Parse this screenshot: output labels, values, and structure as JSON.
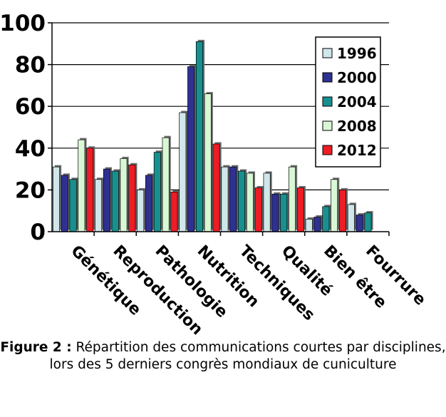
{
  "chart_data": {
    "type": "bar",
    "categories": [
      "Génétique",
      "Reproduction",
      "Pathologie",
      "Nutrition",
      "Techniques",
      "Qualité",
      "Bien être",
      "Fourrure"
    ],
    "series": [
      {
        "name": "1996",
        "color": "#cfe6ea",
        "values": [
          31,
          25,
          20,
          57,
          31,
          28,
          6,
          13
        ]
      },
      {
        "name": "2000",
        "color": "#2e3192",
        "values": [
          27,
          30,
          27,
          79,
          31,
          18,
          7,
          8
        ]
      },
      {
        "name": "2004",
        "color": "#17908f",
        "values": [
          25,
          29,
          38,
          91,
          29,
          18,
          12,
          9
        ]
      },
      {
        "name": "2008",
        "color": "#d8f7d4",
        "values": [
          44,
          35,
          45,
          66,
          28,
          31,
          25,
          0
        ]
      },
      {
        "name": "2012",
        "color": "#ee1c24",
        "values": [
          40,
          32,
          19,
          42,
          21,
          21,
          20,
          0
        ]
      }
    ],
    "ylim": [
      0,
      100
    ],
    "yticks": [
      "0",
      "20",
      "40",
      "60",
      "80",
      "100"
    ],
    "grid": true,
    "legend": "right"
  },
  "caption": {
    "label": "Figure 2 :",
    "text": "Répartition des communications courtes par disciplines, lors des 5 derniers congrès mondiaux de cuniculture"
  }
}
